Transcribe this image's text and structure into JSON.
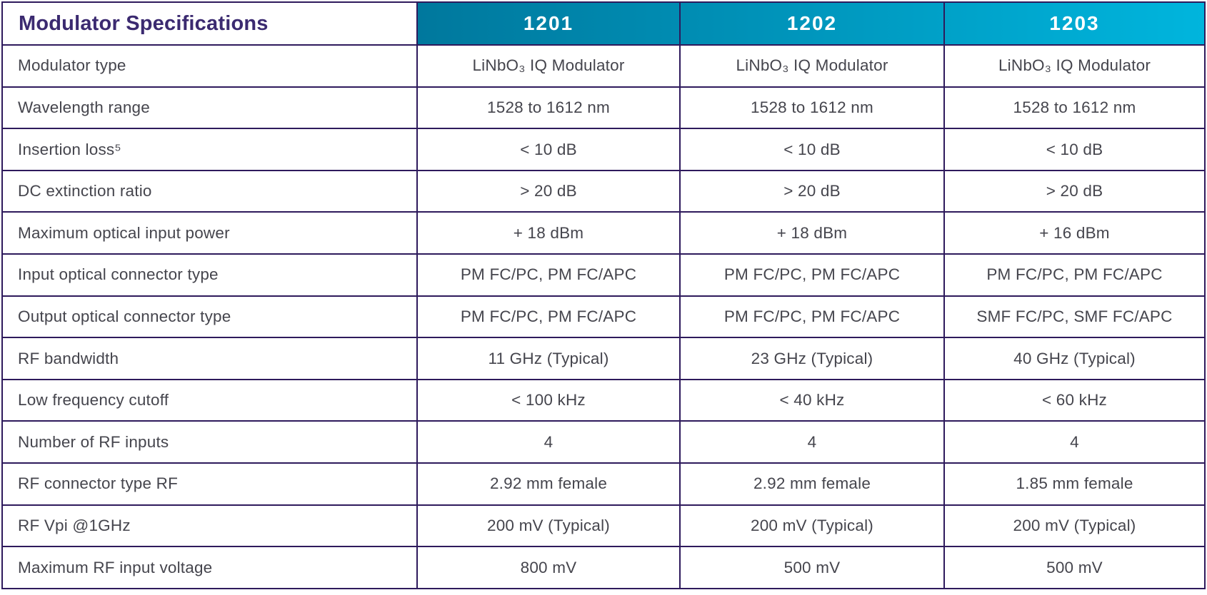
{
  "colors": {
    "border": "#2e1a5c",
    "title_text": "#3b2a70",
    "header_text": "#ffffff",
    "body_text": "#45454d",
    "header_gradient_start": "#00789d",
    "header_gradient_end": "#00b5dd"
  },
  "table": {
    "title": "Modulator Specifications",
    "columns": [
      "1201",
      "1202",
      "1203"
    ],
    "rows": [
      {
        "label": "Modulator type",
        "values": [
          "LiNbO₃ IQ Modulator",
          "LiNbO₃ IQ Modulator",
          "LiNbO₃ IQ Modulator"
        ]
      },
      {
        "label": "Wavelength range",
        "values": [
          "1528 to 1612 nm",
          "1528 to 1612 nm",
          "1528 to 1612 nm"
        ]
      },
      {
        "label": "Insertion loss⁵",
        "values": [
          "< 10 dB",
          "< 10 dB",
          "< 10 dB"
        ]
      },
      {
        "label": "DC extinction ratio",
        "values": [
          "> 20 dB",
          "> 20 dB",
          "> 20 dB"
        ]
      },
      {
        "label": "Maximum optical input power",
        "values": [
          "+ 18 dBm",
          "+ 18 dBm",
          "+ 16 dBm"
        ]
      },
      {
        "label": "Input optical connector type",
        "values": [
          "PM FC/PC, PM FC/APC",
          "PM FC/PC, PM FC/APC",
          "PM FC/PC, PM FC/APC"
        ]
      },
      {
        "label": "Output optical connector type",
        "values": [
          "PM FC/PC, PM FC/APC",
          "PM FC/PC, PM FC/APC",
          "SMF FC/PC, SMF FC/APC"
        ]
      },
      {
        "label": "RF bandwidth",
        "values": [
          "11 GHz (Typical)",
          "23 GHz (Typical)",
          "40 GHz (Typical)"
        ]
      },
      {
        "label": "Low frequency cutoff",
        "values": [
          "< 100 kHz",
          "< 40 kHz",
          "< 60 kHz"
        ]
      },
      {
        "label": "Number of RF inputs",
        "values": [
          "4",
          "4",
          "4"
        ]
      },
      {
        "label": "RF connector type RF",
        "values": [
          "2.92 mm female",
          "2.92 mm female",
          "1.85 mm female"
        ]
      },
      {
        "label": "RF Vpi @1GHz",
        "values": [
          "200 mV (Typical)",
          "200 mV (Typical)",
          "200 mV (Typical)"
        ]
      },
      {
        "label": "Maximum RF input voltage",
        "values": [
          "800 mV",
          "500 mV",
          "500 mV"
        ]
      }
    ]
  }
}
